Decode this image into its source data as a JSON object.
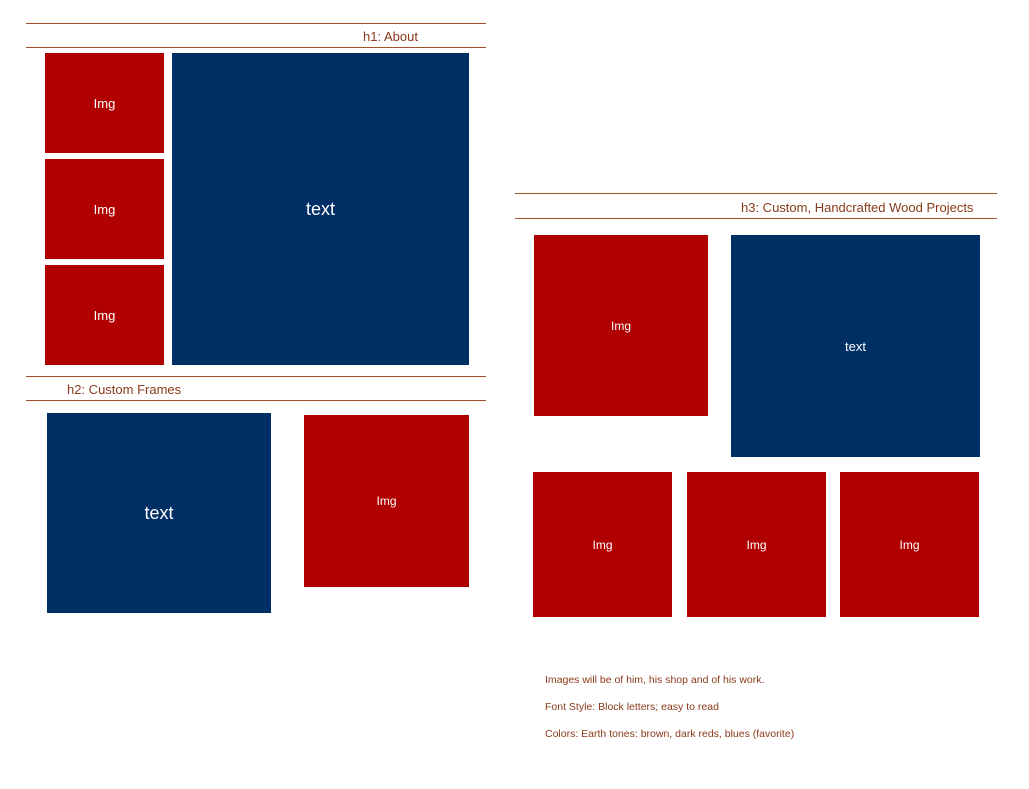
{
  "colors": {
    "rule": "#a0522d",
    "heading": "#8b3a1a",
    "image_box": "#b00000",
    "text_box": "#002f66"
  },
  "section_about": {
    "heading": "h1: About",
    "images": [
      "Img",
      "Img",
      "Img"
    ],
    "text": "text"
  },
  "section_frames": {
    "heading": "h2: Custom Frames",
    "text": "text",
    "image": "Img"
  },
  "section_wood": {
    "heading": "h3: Custom, Handcrafted Wood Projects",
    "top_image": "Img",
    "text": "text",
    "bottom_images": [
      "Img",
      "Img",
      "Img"
    ]
  },
  "notes": [
    "Images will be of him, his shop and of his work.",
    "Font Style:  Block letters; easy to read",
    "Colors: Earth tones: brown, dark reds, blues (favorite)"
  ]
}
